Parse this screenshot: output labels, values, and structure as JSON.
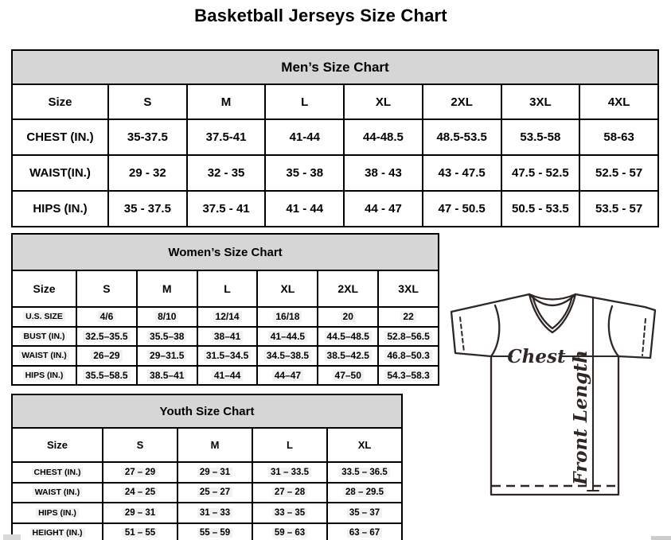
{
  "page": {
    "title": "Basketball Jerseys Size Chart"
  },
  "tables": {
    "mens": {
      "title": "Men’s Size Chart",
      "columns": [
        "Size",
        "S",
        "M",
        "L",
        "XL",
        "2XL",
        "3XL",
        "4XL"
      ],
      "rows": [
        {
          "label": "CHEST (IN.)",
          "values": [
            "35-37.5",
            "37.5-41",
            "41-44",
            "44-48.5",
            "48.5-53.5",
            "53.5-58",
            "58-63"
          ]
        },
        {
          "label": "WAIST(IN.)",
          "values": [
            "29 - 32",
            "32 - 35",
            "35 - 38",
            "38 - 43",
            "43 - 47.5",
            "47.5 - 52.5",
            "52.5 - 57"
          ]
        },
        {
          "label": "HIPS (IN.)",
          "values": [
            "35 - 37.5",
            "37.5 - 41",
            "41 - 44",
            "44 - 47",
            "47 - 50.5",
            "50.5 - 53.5",
            "53.5 - 57"
          ]
        }
      ]
    },
    "womens": {
      "title": "Women’s Size Chart",
      "columns": [
        "Size",
        "S",
        "M",
        "L",
        "XL",
        "2XL",
        "3XL"
      ],
      "rows": [
        {
          "label": "U.S. SIZE",
          "values": [
            "4/6",
            "8/10",
            "12/14",
            "16/18",
            "20",
            "22"
          ]
        },
        {
          "label": "BUST (IN.)",
          "values": [
            "32.5–35.5",
            "35.5–38",
            "38–41",
            "41–44.5",
            "44.5–48.5",
            "52.8–56.5"
          ]
        },
        {
          "label": "WAIST (IN.)",
          "values": [
            "26–29",
            "29–31.5",
            "31.5–34.5",
            "34.5–38.5",
            "38.5–42.5",
            "46.8–50.3"
          ]
        },
        {
          "label": "HIPS (IN.)",
          "values": [
            "35.5–58.5",
            "38.5–41",
            "41–44",
            "44–47",
            "47–50",
            "54.3–58.3"
          ]
        }
      ]
    },
    "youth": {
      "title": "Youth Size Chart",
      "columns": [
        "Size",
        "S",
        "M",
        "L",
        "XL"
      ],
      "rows": [
        {
          "label": "CHEST (IN.)",
          "values": [
            "27 – 29",
            "29 – 31",
            "31 – 33.5",
            "33.5 – 36.5"
          ]
        },
        {
          "label": "WAIST (IN.)",
          "values": [
            "24 – 25",
            "25 – 27",
            "27 – 28",
            "28 – 29.5"
          ]
        },
        {
          "label": "HIPS (IN.)",
          "values": [
            "29 – 31",
            "31 – 33",
            "33 – 35",
            "35 – 37"
          ]
        },
        {
          "label": "HEIGHT (IN.)",
          "values": [
            "51 – 55",
            "55 – 59",
            "59 – 63",
            "63 – 67"
          ]
        }
      ]
    }
  },
  "diagram": {
    "chest_label": "Chest",
    "front_length_label": "Front Length"
  },
  "colors": {
    "band_background": "#d6d6d6",
    "table_border": "#000000",
    "diagram_stroke": "#2e2724",
    "value_highlight": "#f2f2f2"
  }
}
